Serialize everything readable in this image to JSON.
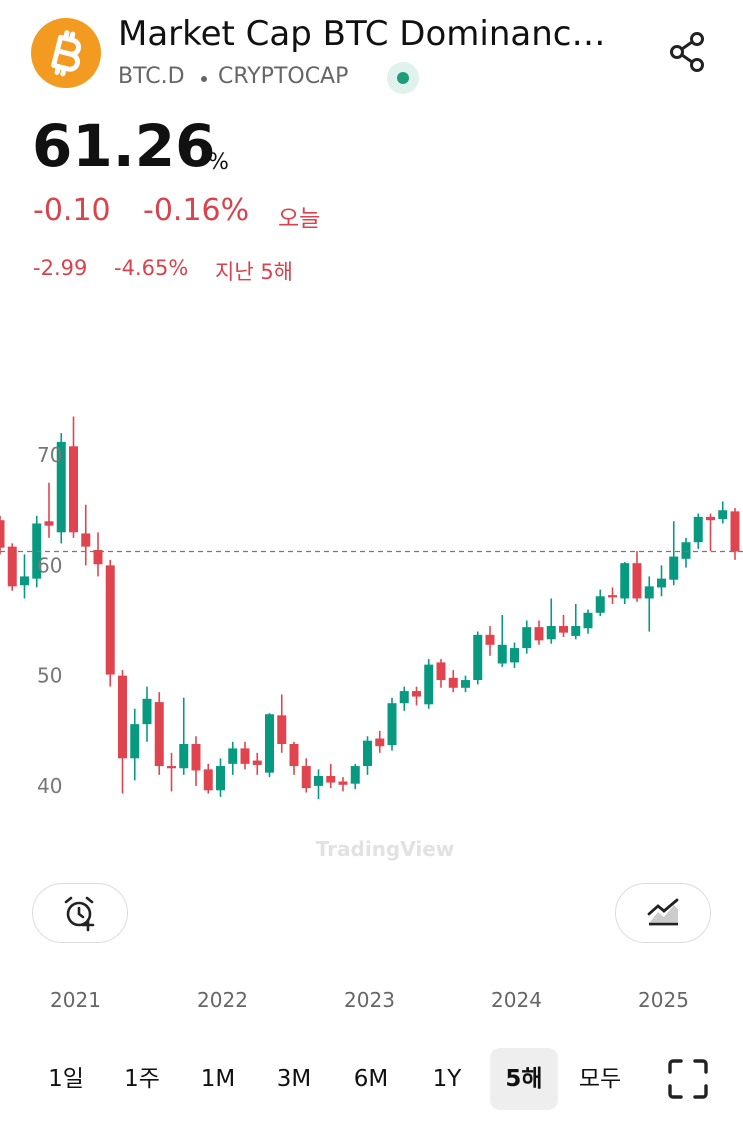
{
  "header": {
    "title": "Market Cap BTC Dominanc…",
    "symbol": "BTC.D",
    "exchange": "CRYPTOCAP"
  },
  "quote": {
    "price": "61.26",
    "unit": "%",
    "change_today": "-0.10",
    "change_pct_today": "-0.16%",
    "today_label": "오늘",
    "change_period": "-2.99",
    "change_pct_period": "-4.65%",
    "period_label": "지난 5해"
  },
  "chart_data": {
    "type": "candlestick",
    "categories": [
      null,
      null,
      null,
      null,
      null,
      null,
      "2021",
      null,
      null,
      null,
      null,
      null,
      null,
      null,
      null,
      null,
      null,
      null,
      "2022",
      null,
      null,
      null,
      null,
      null,
      null,
      null,
      null,
      null,
      null,
      null,
      "2023",
      null,
      null,
      null,
      null,
      null,
      null,
      null,
      null,
      null,
      null,
      null,
      "2024",
      null,
      null,
      null,
      null,
      null,
      null,
      null,
      null,
      null,
      null,
      null,
      "2025",
      null,
      null,
      null,
      null,
      null,
      null
    ],
    "open": [
      64.1,
      61.7,
      58.2,
      58.8,
      64.0,
      63.0,
      70.8,
      62.9,
      61.4,
      60.0,
      50.0,
      42.5,
      45.6,
      47.6,
      41.8,
      41.6,
      43.8,
      41.5,
      39.6,
      42.0,
      43.4,
      42.3,
      41.2,
      46.4,
      43.8,
      41.8,
      40.0,
      40.9,
      40.4,
      40.2,
      41.8,
      44.3,
      43.7,
      47.5,
      48.6,
      47.4,
      51.2,
      49.8,
      48.9,
      49.6,
      53.7,
      51.1,
      51.2,
      52.5,
      54.4,
      53.3,
      54.5,
      53.6,
      54.3,
      55.7,
      57.3,
      57.0,
      60.2,
      57.0,
      58.0,
      58.7,
      60.6,
      62.1,
      64.4,
      64.2,
      64.9
    ],
    "high": [
      64.5,
      62.0,
      61.0,
      64.5,
      67.5,
      72.0,
      73.5,
      65.5,
      63.0,
      60.5,
      50.5,
      47.0,
      49.0,
      48.5,
      43.0,
      48.0,
      44.5,
      42.0,
      42.5,
      44.0,
      44.0,
      43.0,
      46.6,
      48.3,
      44.0,
      42.5,
      41.5,
      42.0,
      40.8,
      42.0,
      44.5,
      45.0,
      48.0,
      49.0,
      49.0,
      51.5,
      51.5,
      50.5,
      50.0,
      54.0,
      54.5,
      55.5,
      53.0,
      55.0,
      55.0,
      57.0,
      55.5,
      56.5,
      56.0,
      57.8,
      58.0,
      60.3,
      61.3,
      59.0,
      60.0,
      64.0,
      62.5,
      64.7,
      64.7,
      65.8,
      65.2
    ],
    "low": [
      61.0,
      57.7,
      57.0,
      58.0,
      62.5,
      62.0,
      62.5,
      60.0,
      59.0,
      49.0,
      39.3,
      40.5,
      44.0,
      41.0,
      39.5,
      41.0,
      40.0,
      39.3,
      39.0,
      41.0,
      41.5,
      41.0,
      40.8,
      43.0,
      41.0,
      39.4,
      38.8,
      39.8,
      39.5,
      39.7,
      41.0,
      43.0,
      43.2,
      46.8,
      47.3,
      47.0,
      48.9,
      48.5,
      48.5,
      49.2,
      51.8,
      50.8,
      50.7,
      52.0,
      52.8,
      52.9,
      53.5,
      53.3,
      53.8,
      55.4,
      56.5,
      56.5,
      56.7,
      54.0,
      57.2,
      58.2,
      59.8,
      61.5,
      61.3,
      63.8,
      60.5
    ],
    "close": [
      61.6,
      58.1,
      59.0,
      63.8,
      63.6,
      71.2,
      63.0,
      61.7,
      60.1,
      50.1,
      42.5,
      45.6,
      47.9,
      41.8,
      41.6,
      43.8,
      41.4,
      39.6,
      41.8,
      43.4,
      42.0,
      41.9,
      46.5,
      43.8,
      41.8,
      39.8,
      40.9,
      40.3,
      40.1,
      41.8,
      44.1,
      43.6,
      47.5,
      48.6,
      48.1,
      51.0,
      49.6,
      48.9,
      49.6,
      53.7,
      52.8,
      52.8,
      52.5,
      54.4,
      53.2,
      54.5,
      53.9,
      54.5,
      55.7,
      57.2,
      57.1,
      60.2,
      57.0,
      58.1,
      58.8,
      60.8,
      62.1,
      64.4,
      64.1,
      65.0,
      61.26
    ],
    "up_color": "#089981",
    "down_color": "#e0454f",
    "ylim": [
      36,
      75
    ],
    "yticks": [
      40,
      50,
      60,
      70
    ]
  },
  "watermark": "TradingView",
  "range_buttons": {
    "items": [
      "1일",
      "1주",
      "1M",
      "3M",
      "6M",
      "1Y",
      "5해",
      "모두"
    ],
    "selected": 6
  }
}
